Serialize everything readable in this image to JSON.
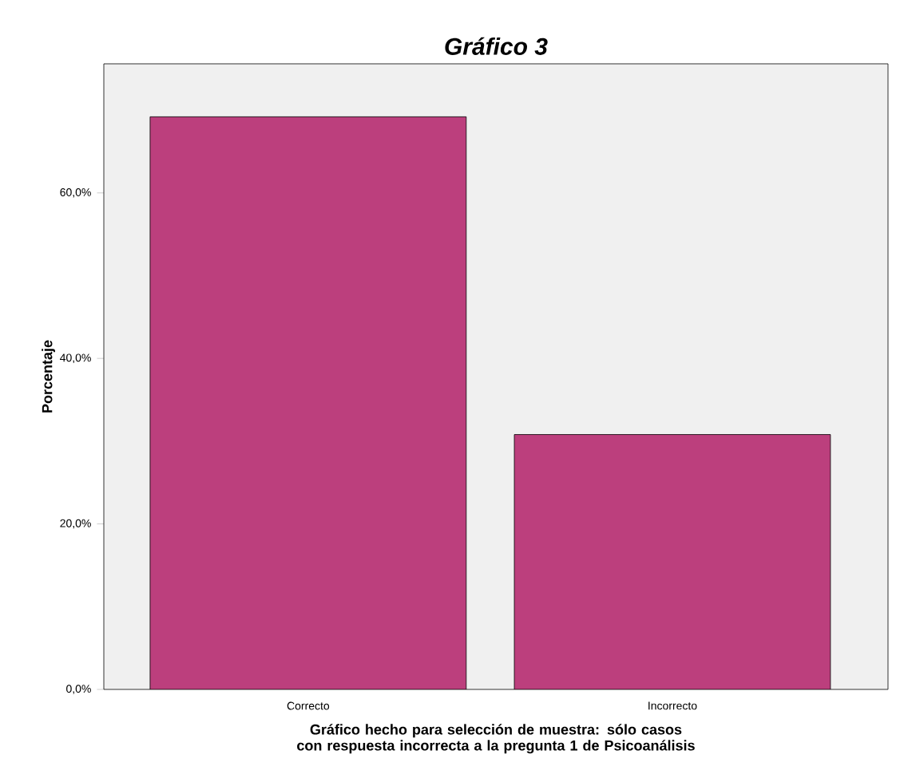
{
  "chart_data": {
    "type": "bar",
    "title": "Gráfico 3",
    "xlabel": "Gráfico hecho para selección de muestra: sólo casos con respuesta incorrecta a la pregunta 1 de Psicoanálisis",
    "ylabel": "Porcentaje",
    "categories": [
      "Correcto",
      "Incorrecto"
    ],
    "values": [
      69.2,
      30.8
    ],
    "color": "#bc3f7d",
    "ylim": [
      0,
      75.6
    ],
    "yticks": [
      {
        "value": 0,
        "label": "0,0%"
      },
      {
        "value": 20,
        "label": "20,0%"
      },
      {
        "value": 40,
        "label": "40,0%"
      },
      {
        "value": 60,
        "label": "60,0%"
      }
    ]
  }
}
